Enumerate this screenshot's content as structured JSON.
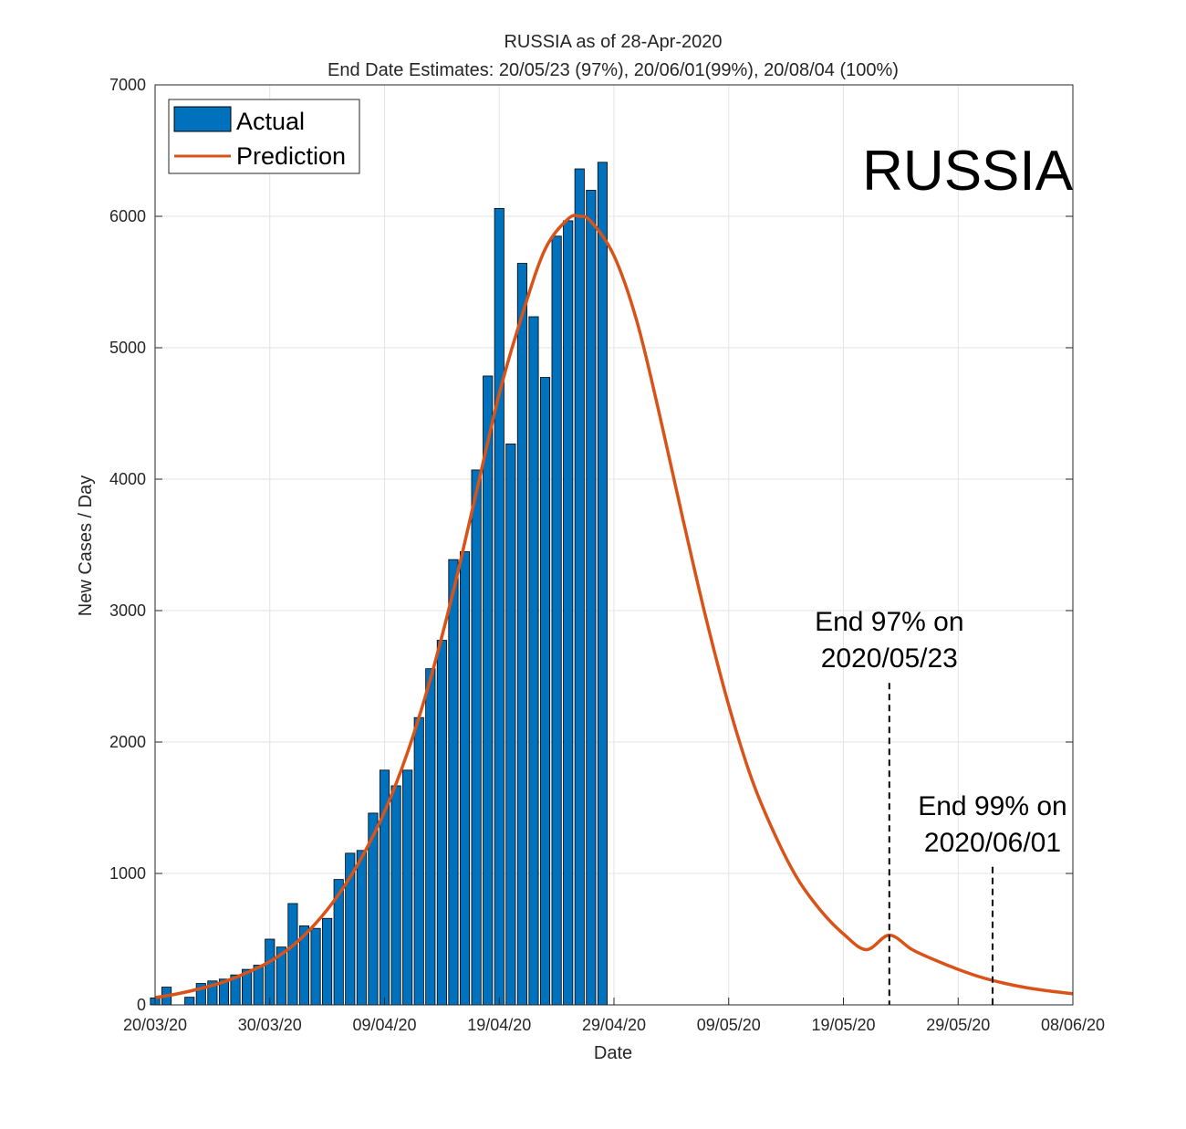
{
  "chart_data": {
    "type": "bar",
    "title": "RUSSIA as of 28-Apr-2020",
    "subtitle": "End Date Estimates: 20/05/23 (97%), 20/06/01(99%), 20/08/04 (100%)",
    "xlabel": "Date",
    "ylabel": "New Cases / Day",
    "ylim": [
      0,
      7000
    ],
    "x_start": "2020-03-20",
    "x_end": "2020-06-08",
    "yticks": [
      0,
      1000,
      2000,
      3000,
      4000,
      5000,
      6000,
      7000
    ],
    "xticks": [
      {
        "date": "2020-03-20",
        "label": "20/03/20"
      },
      {
        "date": "2020-03-30",
        "label": "30/03/20"
      },
      {
        "date": "2020-04-09",
        "label": "09/04/20"
      },
      {
        "date": "2020-04-19",
        "label": "19/04/20"
      },
      {
        "date": "2020-04-29",
        "label": "29/04/20"
      },
      {
        "date": "2020-05-09",
        "label": "09/05/20"
      },
      {
        "date": "2020-05-19",
        "label": "19/05/20"
      },
      {
        "date": "2020-05-29",
        "label": "29/05/20"
      },
      {
        "date": "2020-06-08",
        "label": "08/06/20"
      }
    ],
    "grid": true,
    "legend_position": "top-left",
    "series": [
      {
        "name": "Actual",
        "kind": "bar",
        "color": "#0072BD",
        "dates": [
          "2020-03-20",
          "2020-03-21",
          "2020-03-22",
          "2020-03-23",
          "2020-03-24",
          "2020-03-25",
          "2020-03-26",
          "2020-03-27",
          "2020-03-28",
          "2020-03-29",
          "2020-03-30",
          "2020-03-31",
          "2020-04-01",
          "2020-04-02",
          "2020-04-03",
          "2020-04-04",
          "2020-04-05",
          "2020-04-06",
          "2020-04-07",
          "2020-04-08",
          "2020-04-09",
          "2020-04-10",
          "2020-04-11",
          "2020-04-12",
          "2020-04-13",
          "2020-04-14",
          "2020-04-15",
          "2020-04-16",
          "2020-04-17",
          "2020-04-18",
          "2020-04-19",
          "2020-04-20",
          "2020-04-21",
          "2020-04-22",
          "2020-04-23",
          "2020-04-24",
          "2020-04-25",
          "2020-04-26",
          "2020-04-27",
          "2020-04-28"
        ],
        "values": [
          53,
          135,
          0,
          58,
          163,
          182,
          196,
          228,
          270,
          302,
          500,
          440,
          771,
          601,
          582,
          658,
          954,
          1154,
          1175,
          1459,
          1786,
          1667,
          1786,
          2186,
          2558,
          2774,
          3388,
          3448,
          4070,
          4785,
          6060,
          4268,
          5642,
          5236,
          4774,
          5849,
          5966,
          6361,
          6198,
          6411
        ]
      },
      {
        "name": "Prediction",
        "kind": "line",
        "color": "#D95319",
        "dates": [
          "2020-03-20",
          "2020-03-22",
          "2020-03-24",
          "2020-03-26",
          "2020-03-28",
          "2020-03-30",
          "2020-04-01",
          "2020-04-03",
          "2020-04-05",
          "2020-04-07",
          "2020-04-09",
          "2020-04-11",
          "2020-04-13",
          "2020-04-15",
          "2020-04-17",
          "2020-04-19",
          "2020-04-21",
          "2020-04-23",
          "2020-04-25",
          "2020-04-26",
          "2020-04-27",
          "2020-04-29",
          "2020-05-01",
          "2020-05-03",
          "2020-05-05",
          "2020-05-07",
          "2020-05-09",
          "2020-05-11",
          "2020-05-13",
          "2020-05-15",
          "2020-05-17",
          "2020-05-19",
          "2020-05-21",
          "2020-05-23",
          "2020-05-25",
          "2020-05-27",
          "2020-05-29",
          "2020-05-31",
          "2020-06-02",
          "2020-06-04",
          "2020-06-06",
          "2020-06-08"
        ],
        "values": [
          55,
          85,
          125,
          175,
          245,
          330,
          450,
          620,
          840,
          1120,
          1470,
          1920,
          2480,
          3150,
          3900,
          4650,
          5250,
          5750,
          5980,
          6000,
          5960,
          5700,
          5200,
          4480,
          3700,
          2950,
          2280,
          1720,
          1300,
          960,
          720,
          540,
          420,
          530,
          420,
          340,
          270,
          210,
          165,
          130,
          105,
          85
        ]
      }
    ],
    "annotations": [
      {
        "date": "2020-05-23",
        "line1": "End 97% on",
        "line2": "2020/05/23",
        "line_top": 2450
      },
      {
        "date": "2020-06-01",
        "line1": "End 99% on",
        "line2": "2020/06/01",
        "line_top": 1050
      }
    ],
    "country_label": "RUSSIA"
  }
}
